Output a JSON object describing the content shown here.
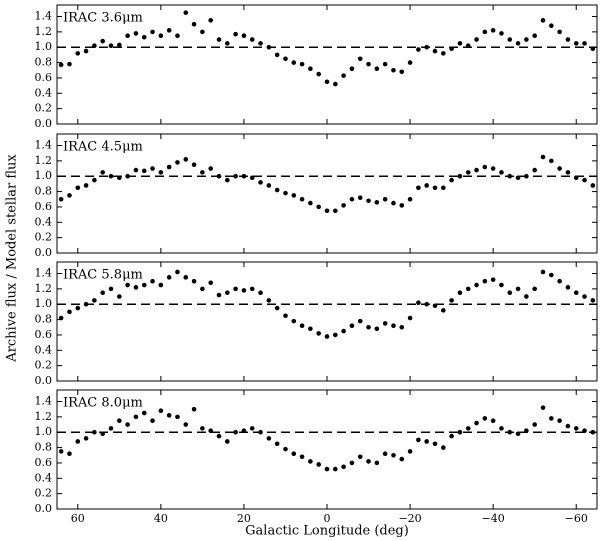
{
  "xlabel": "Galactic Longitude (deg)",
  "ylabel": "Archive flux / Model stellar flux",
  "xlim": [
    65,
    -65
  ],
  "xticks": [
    60,
    40,
    20,
    0,
    {
      "value": -20,
      "label": "−20"
    },
    {
      "value": -40,
      "label": "−40"
    },
    {
      "value": -60,
      "label": "−60"
    }
  ],
  "chart_data": [
    {
      "type": "scatter",
      "title": "IRAC 3.6μm",
      "color": "#000000",
      "ylim": [
        0,
        1.55
      ],
      "yticks": [
        {
          "value": 0,
          "label": "0.0"
        },
        0.2,
        0.4,
        0.6,
        0.8,
        {
          "value": 1,
          "label": "1.0"
        },
        1.2,
        1.4
      ],
      "reference_line": 1,
      "x": [
        64,
        62,
        60,
        58,
        56,
        54,
        52,
        50,
        48,
        46,
        44,
        42,
        40,
        38,
        36,
        34,
        32,
        30,
        28,
        26,
        24,
        22,
        20,
        18,
        16,
        14,
        12,
        10,
        8,
        6,
        4,
        2,
        0,
        -2,
        -4,
        -6,
        -8,
        -10,
        -12,
        -14,
        -16,
        -18,
        -20,
        -22,
        -24,
        -26,
        -28,
        -30,
        -32,
        -34,
        -36,
        -38,
        -40,
        -42,
        -44,
        -46,
        -48,
        -50,
        -52,
        -54,
        -56,
        -58,
        -60,
        -62,
        -64
      ],
      "values": [
        0.77,
        0.78,
        0.92,
        0.95,
        1.02,
        1.08,
        1.02,
        1.03,
        1.15,
        1.18,
        1.13,
        1.2,
        1.15,
        1.22,
        1.15,
        1.45,
        1.3,
        1.2,
        1.35,
        1.1,
        1.05,
        1.17,
        1.15,
        1.1,
        1.05,
        1.0,
        0.9,
        0.85,
        0.8,
        0.78,
        0.72,
        0.65,
        0.55,
        0.52,
        0.63,
        0.72,
        0.85,
        0.78,
        0.72,
        0.78,
        0.7,
        0.68,
        0.8,
        0.97,
        1.0,
        0.95,
        0.92,
        0.98,
        1.05,
        1.02,
        1.1,
        1.2,
        1.22,
        1.18,
        1.1,
        1.05,
        1.1,
        1.15,
        1.35,
        1.28,
        1.2,
        1.1,
        1.05,
        1.05,
        0.98
      ]
    },
    {
      "type": "scatter",
      "title": "IRAC 4.5μm",
      "color": "#000000",
      "ylim": [
        0,
        1.55
      ],
      "yticks": [
        {
          "value": 0,
          "label": "0.0"
        },
        0.2,
        0.4,
        0.6,
        0.8,
        {
          "value": 1,
          "label": "1.0"
        },
        1.2,
        1.4
      ],
      "reference_line": 1,
      "x": [
        64,
        62,
        60,
        58,
        56,
        54,
        52,
        50,
        48,
        46,
        44,
        42,
        40,
        38,
        36,
        34,
        32,
        30,
        28,
        26,
        24,
        22,
        20,
        18,
        16,
        14,
        12,
        10,
        8,
        6,
        4,
        2,
        0,
        -2,
        -4,
        -6,
        -8,
        -10,
        -12,
        -14,
        -16,
        -18,
        -20,
        -22,
        -24,
        -26,
        -28,
        -30,
        -32,
        -34,
        -36,
        -38,
        -40,
        -42,
        -44,
        -46,
        -48,
        -50,
        -52,
        -54,
        -56,
        -58,
        -60,
        -62,
        -64
      ],
      "values": [
        0.7,
        0.75,
        0.85,
        0.88,
        0.95,
        1.05,
        1.0,
        0.98,
        1.0,
        1.08,
        1.07,
        1.1,
        1.05,
        1.12,
        1.18,
        1.22,
        1.15,
        1.05,
        1.1,
        1.0,
        0.95,
        1.0,
        1.0,
        0.98,
        0.92,
        0.88,
        0.82,
        0.78,
        0.75,
        0.7,
        0.65,
        0.6,
        0.55,
        0.55,
        0.62,
        0.7,
        0.72,
        0.68,
        0.66,
        0.7,
        0.65,
        0.62,
        0.7,
        0.85,
        0.88,
        0.85,
        0.85,
        0.95,
        1.0,
        1.05,
        1.08,
        1.12,
        1.1,
        1.05,
        1.0,
        0.98,
        1.0,
        1.08,
        1.25,
        1.2,
        1.1,
        1.05,
        0.98,
        0.95,
        0.88
      ]
    },
    {
      "type": "scatter",
      "title": "IRAC 5.8μm",
      "color": "#000000",
      "ylim": [
        0,
        1.55
      ],
      "yticks": [
        {
          "value": 0,
          "label": "0.0"
        },
        0.2,
        0.4,
        0.6,
        0.8,
        {
          "value": 1,
          "label": "1.0"
        },
        1.2,
        1.4
      ],
      "reference_line": 1,
      "x": [
        64,
        62,
        60,
        58,
        56,
        54,
        52,
        50,
        48,
        46,
        44,
        42,
        40,
        38,
        36,
        34,
        32,
        30,
        28,
        26,
        24,
        22,
        20,
        18,
        16,
        14,
        12,
        10,
        8,
        6,
        4,
        2,
        0,
        -2,
        -4,
        -6,
        -8,
        -10,
        -12,
        -14,
        -16,
        -18,
        -20,
        -22,
        -24,
        -26,
        -28,
        -30,
        -32,
        -34,
        -36,
        -38,
        -40,
        -42,
        -44,
        -46,
        -48,
        -50,
        -52,
        -54,
        -56,
        -58,
        -60,
        -62,
        -64
      ],
      "values": [
        0.82,
        0.9,
        0.95,
        1.0,
        1.05,
        1.15,
        1.2,
        1.1,
        1.25,
        1.22,
        1.25,
        1.3,
        1.25,
        1.35,
        1.42,
        1.35,
        1.3,
        1.2,
        1.28,
        1.12,
        1.15,
        1.2,
        1.18,
        1.2,
        1.15,
        1.05,
        0.95,
        0.85,
        0.78,
        0.72,
        0.68,
        0.62,
        0.58,
        0.6,
        0.65,
        0.72,
        0.78,
        0.7,
        0.68,
        0.75,
        0.72,
        0.7,
        0.82,
        1.02,
        1.0,
        0.98,
        0.92,
        1.05,
        1.15,
        1.2,
        1.25,
        1.3,
        1.32,
        1.25,
        1.15,
        1.2,
        1.1,
        1.2,
        1.42,
        1.38,
        1.3,
        1.22,
        1.15,
        1.1,
        1.05
      ]
    },
    {
      "type": "scatter",
      "title": "IRAC 8.0μm",
      "color": "#000000",
      "ylim": [
        0,
        1.55
      ],
      "yticks": [
        {
          "value": 0,
          "label": "0.0"
        },
        0.2,
        0.4,
        0.6,
        0.8,
        {
          "value": 1,
          "label": "1.0"
        },
        1.2,
        1.4
      ],
      "reference_line": 1,
      "x": [
        64,
        62,
        60,
        58,
        56,
        54,
        52,
        50,
        48,
        46,
        44,
        42,
        40,
        38,
        36,
        34,
        32,
        30,
        28,
        26,
        24,
        22,
        20,
        18,
        16,
        14,
        12,
        10,
        8,
        6,
        4,
        2,
        0,
        -2,
        -4,
        -6,
        -8,
        -10,
        -12,
        -14,
        -16,
        -18,
        -20,
        -22,
        -24,
        -26,
        -28,
        -30,
        -32,
        -34,
        -36,
        -38,
        -40,
        -42,
        -44,
        -46,
        -48,
        -50,
        -52,
        -54,
        -56,
        -58,
        -60,
        -62,
        -64
      ],
      "values": [
        0.75,
        0.72,
        0.88,
        0.92,
        1.0,
        0.98,
        1.05,
        1.15,
        1.1,
        1.2,
        1.25,
        1.15,
        1.28,
        1.22,
        1.2,
        1.1,
        1.3,
        1.05,
        1.02,
        0.95,
        0.88,
        1.0,
        1.02,
        1.05,
        1.0,
        0.92,
        0.85,
        0.78,
        0.72,
        0.68,
        0.62,
        0.58,
        0.52,
        0.52,
        0.55,
        0.6,
        0.68,
        0.62,
        0.6,
        0.72,
        0.7,
        0.65,
        0.75,
        0.9,
        0.88,
        0.85,
        0.8,
        0.95,
        1.0,
        1.05,
        1.12,
        1.18,
        1.15,
        1.05,
        1.0,
        0.98,
        1.02,
        1.1,
        1.32,
        1.18,
        1.15,
        1.08,
        1.05,
        1.02,
        1.0
      ]
    }
  ]
}
